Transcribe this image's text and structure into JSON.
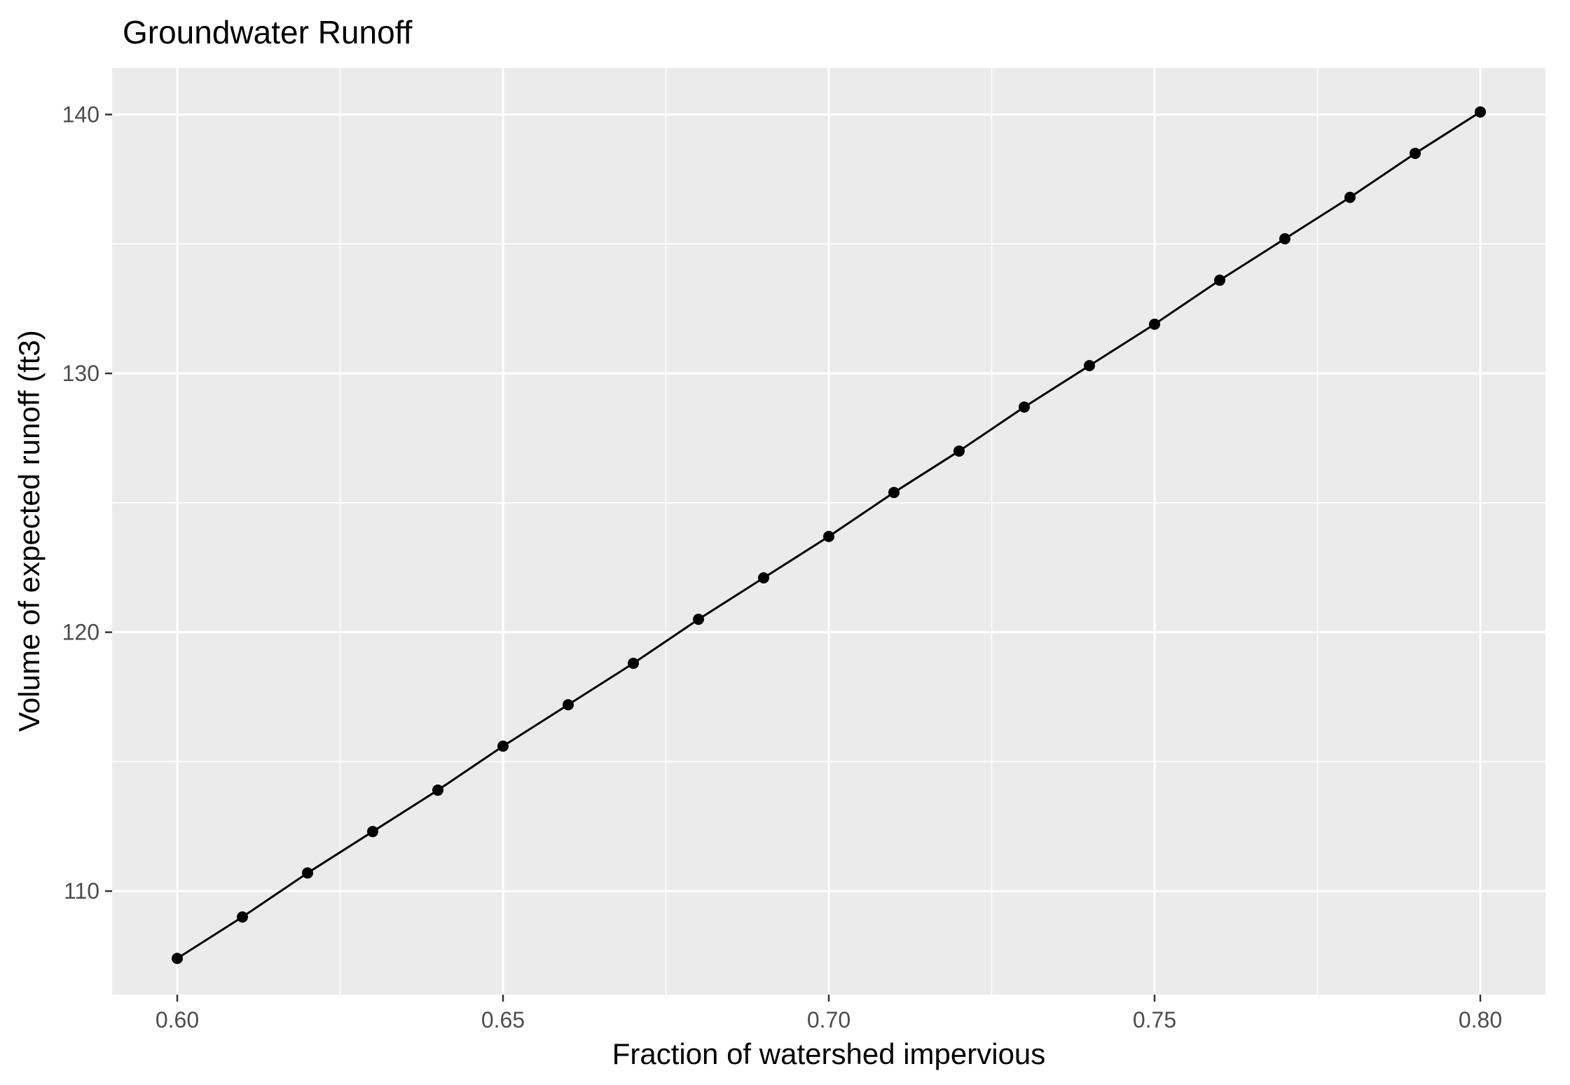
{
  "chart_data": {
    "type": "line",
    "title": "Groundwater Runoff",
    "xlabel": "Fraction of watershed impervious",
    "ylabel": "Volume of expected runoff (ft3)",
    "xlim": [
      0.59,
      0.81
    ],
    "ylim": [
      106.0,
      141.8
    ],
    "x_ticks": [
      0.6,
      0.65,
      0.7,
      0.75,
      0.8
    ],
    "x_tick_labels": [
      "0.60",
      "0.65",
      "0.70",
      "0.75",
      "0.80"
    ],
    "y_ticks": [
      110,
      120,
      130,
      140
    ],
    "y_tick_labels": [
      "110",
      "120",
      "130",
      "140"
    ],
    "grid": true,
    "markers": true,
    "colors": {
      "panel": "#ebebeb",
      "grid": "#ffffff",
      "line": "#000000",
      "point": "#000000"
    },
    "series": [
      {
        "x": [
          0.6,
          0.61,
          0.62,
          0.63,
          0.64,
          0.65,
          0.66,
          0.67,
          0.68,
          0.69,
          0.7,
          0.71,
          0.72,
          0.73,
          0.74,
          0.75,
          0.76,
          0.77,
          0.78,
          0.79,
          0.8
        ],
        "y": [
          107.4,
          109.0,
          110.7,
          112.3,
          113.9,
          115.6,
          117.2,
          118.8,
          120.5,
          122.1,
          123.7,
          125.4,
          127.0,
          128.7,
          130.3,
          131.9,
          133.6,
          135.2,
          136.8,
          138.5,
          140.1
        ]
      }
    ]
  }
}
